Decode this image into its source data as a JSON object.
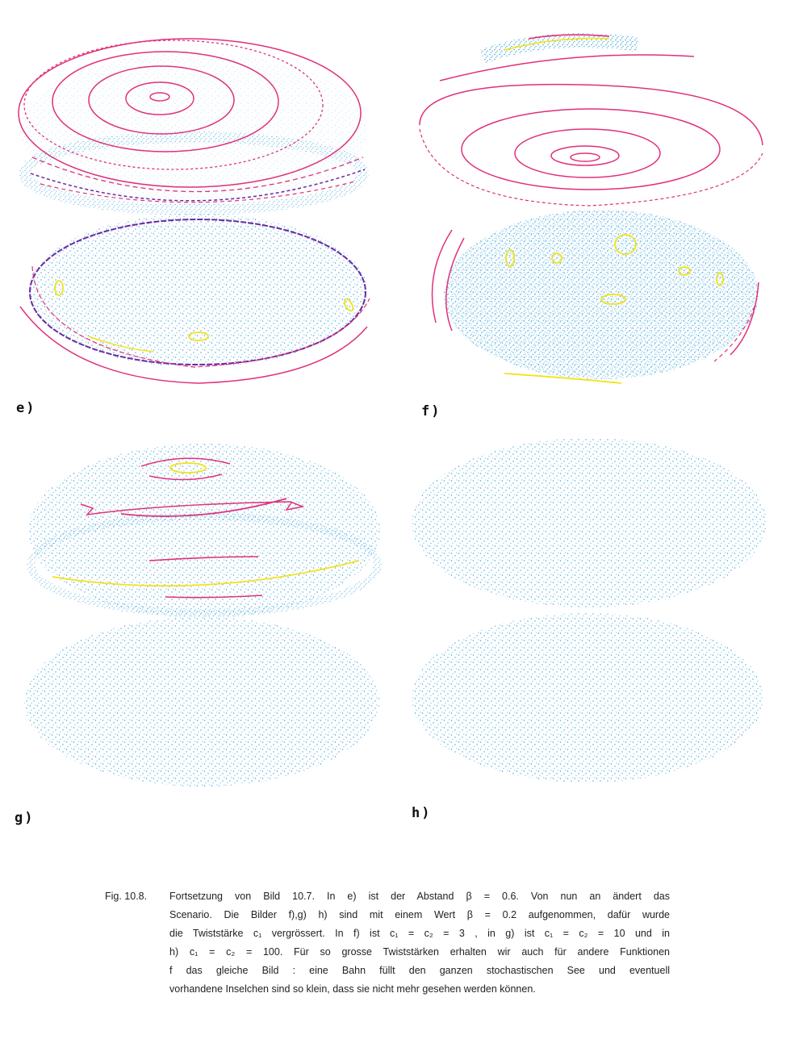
{
  "panels": {
    "e": {
      "label": "e)"
    },
    "f": {
      "label": "f)"
    },
    "g": {
      "label": "g)"
    },
    "h": {
      "label": "h)"
    }
  },
  "caption": {
    "number": "Fig. 10.8.",
    "lines": [
      "Fortsetzung von Bild 10.7. In e) ist der Abstand β = 0.6. Von nun an ändert das",
      "Scenario. Die Bilder f),g) h) sind mit einem Wert β = 0.2 aufgenommen, dafür wurde",
      "die Twiststärke c₁ vergrössert. In f) ist c₁ = c₂ = 3 , in g) ist c₁ = c₂ = 10 und in",
      "h) c₁ = c₂ = 100. Für so grosse Twiststärken erhalten wir auch für andere Funktionen",
      "f das gleiche Bild : eine Bahn füllt den ganzen stochastischen See und eventuell",
      "vorhandene Inselchen sind so klein, dass sie nicht mehr gesehen werden können."
    ]
  },
  "colors": {
    "sea": "#3aa6d8",
    "orbit_red": "#e0307a",
    "orbit_yellow": "#f2e21a",
    "orbit_purple": "#6a2aa0"
  }
}
